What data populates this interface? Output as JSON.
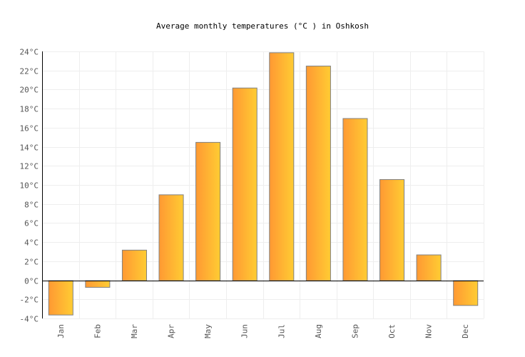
{
  "chart_data": {
    "type": "bar",
    "title": "Average monthly temperatures (°C ) in Oshkosh",
    "xlabel": "",
    "ylabel": "",
    "categories": [
      "Jan",
      "Feb",
      "Mar",
      "Apr",
      "May",
      "Jun",
      "Jul",
      "Aug",
      "Sep",
      "Oct",
      "Nov",
      "Dec"
    ],
    "values": [
      -3.6,
      -0.7,
      3.2,
      9.0,
      14.5,
      20.2,
      23.9,
      22.5,
      17.0,
      10.6,
      2.7,
      -2.6
    ],
    "ylim": [
      -4,
      24
    ],
    "yticks": [
      -4,
      -2,
      0,
      2,
      4,
      6,
      8,
      10,
      12,
      14,
      16,
      18,
      20,
      22,
      24
    ],
    "ytick_suffix": "°C",
    "grid": true,
    "legend": "none",
    "colors": {
      "bar_left": "#ff9933",
      "bar_right": "#ffcc33",
      "bar_stroke": "#808080",
      "grid": "#eeeeee"
    }
  }
}
